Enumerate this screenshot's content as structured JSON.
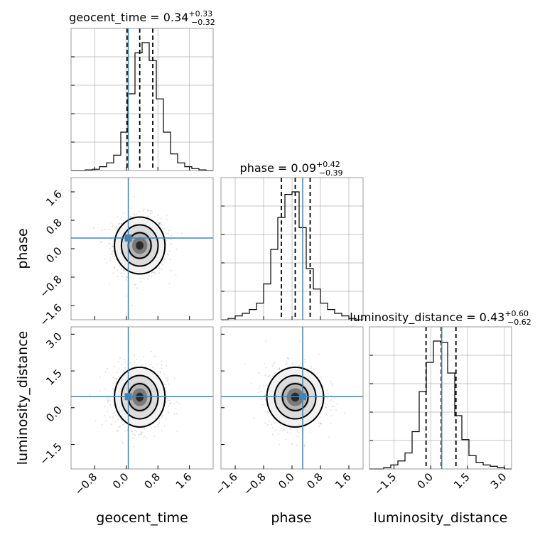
{
  "chart_data": {
    "type": "corner",
    "parameters": [
      "geocent_time",
      "phase",
      "luminosity_distance"
    ],
    "truths": {
      "geocent_time": 0.05,
      "phase": 0.3,
      "luminosity_distance": 0.45
    },
    "ranges": {
      "geocent_time": [
        -1.4,
        2.2
      ],
      "phase": [
        -2.0,
        2.0
      ],
      "luminosity_distance": [
        -2.5,
        3.3
      ]
    },
    "ticks": {
      "geocent_time": [
        "−0.8",
        "0.0",
        "0.8",
        "1.6"
      ],
      "phase": [
        "−1.6",
        "−0.8",
        "0.0",
        "0.8",
        "1.6"
      ],
      "luminosity_distance": [
        "−1.5",
        "0.0",
        "1.5",
        "3.0"
      ]
    },
    "tick_values": {
      "geocent_time": [
        -0.8,
        0.0,
        0.8,
        1.6
      ],
      "phase": [
        -1.6,
        -0.8,
        0.0,
        0.8,
        1.6
      ],
      "luminosity_distance": [
        -1.5,
        0.0,
        1.5,
        3.0
      ]
    },
    "diag_tick_labels": {
      "luminosity_distance": [
        "−1.5",
        "0.0",
        "1.5",
        "3.0"
      ]
    },
    "titles": [
      {
        "param": "geocent_time",
        "main": "geocent_time = 0.34",
        "plus": "+0.33",
        "minus": "−0.32"
      },
      {
        "param": "phase",
        "main": "phase = 0.09",
        "plus": "+0.42",
        "minus": "−0.39"
      },
      {
        "param": "luminosity_distance",
        "main": "luminosity_distance = 0.43",
        "plus": "+0.60",
        "minus": "−0.62"
      }
    ],
    "quantiles": {
      "geocent_time": [
        0.02,
        0.34,
        0.67
      ],
      "phase": [
        -0.3,
        0.09,
        0.51
      ],
      "luminosity_distance": [
        -0.19,
        0.43,
        1.03
      ]
    },
    "histograms": {
      "geocent_time": [
        0.0,
        0.0,
        0.005,
        0.01,
        0.03,
        0.06,
        0.12,
        0.3,
        0.6,
        0.92,
        1.0,
        0.86,
        0.56,
        0.3,
        0.13,
        0.06,
        0.03,
        0.015,
        0.005,
        0.0
      ],
      "phase": [
        0.0,
        0.01,
        0.03,
        0.05,
        0.08,
        0.13,
        0.28,
        0.55,
        0.8,
        0.98,
        1.0,
        0.72,
        0.4,
        0.24,
        0.13,
        0.08,
        0.05,
        0.03,
        0.01,
        0.0
      ],
      "luminosity_distance": [
        0.0,
        0.0,
        0.01,
        0.03,
        0.06,
        0.12,
        0.28,
        0.58,
        0.8,
        0.96,
        0.95,
        0.72,
        0.4,
        0.22,
        0.1,
        0.05,
        0.03,
        0.02,
        0.01,
        0.0
      ]
    },
    "means": {
      "geocent_time": 0.34,
      "phase": 0.09,
      "luminosity_distance": 0.43
    },
    "sigmas": {
      "geocent_time": 0.32,
      "phase": 0.4,
      "luminosity_distance": 0.61
    },
    "grid": true,
    "colors": {
      "truth": "#4682b4",
      "points": "#000000",
      "contours": "#000000"
    }
  }
}
